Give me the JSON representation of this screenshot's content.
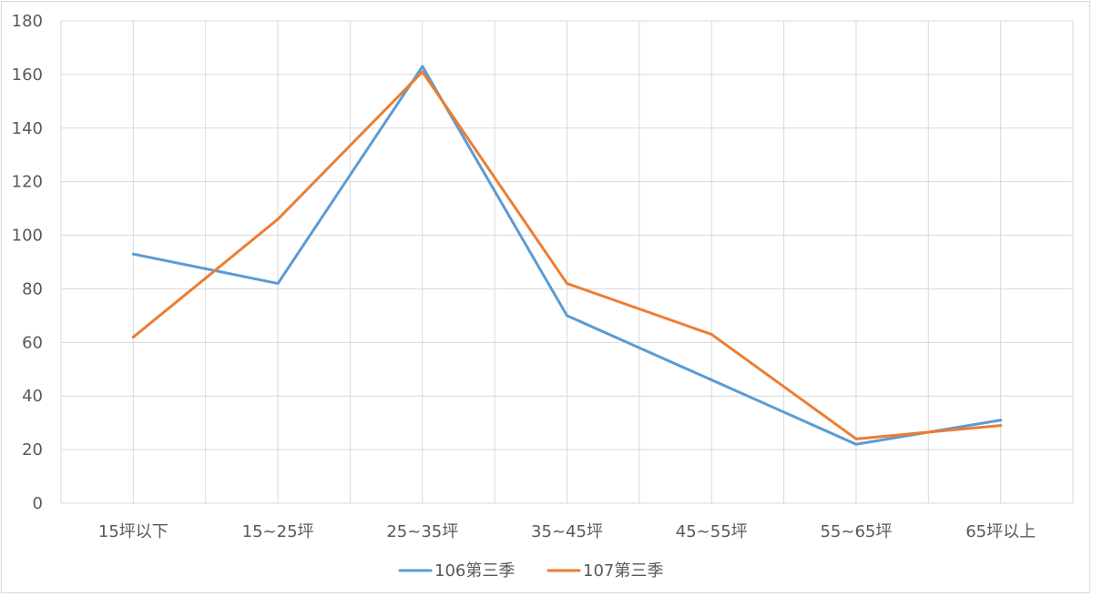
{
  "chart_data": {
    "type": "line",
    "title": "",
    "xlabel": "",
    "ylabel": "",
    "categories": [
      "15坪以下",
      "15~25坪",
      "25~35坪",
      "35~45坪",
      "45~55坪",
      "55~65坪",
      "65坪以上"
    ],
    "ylim": [
      0,
      180
    ],
    "yticks": [
      0,
      20,
      40,
      60,
      80,
      100,
      120,
      140,
      160,
      180
    ],
    "grid": true,
    "legend_position": "bottom",
    "series": [
      {
        "name": "106第三季",
        "color": "#5b9bd5",
        "values": [
          93,
          82,
          163,
          70,
          46,
          22,
          31
        ]
      },
      {
        "name": "107第三季",
        "color": "#ed7d31",
        "values": [
          62,
          106,
          161,
          82,
          63,
          24,
          29
        ]
      }
    ]
  },
  "colors": {
    "grid": "#d9d9d9",
    "axis_text": "#595959",
    "frame": "#d9d9d9"
  }
}
